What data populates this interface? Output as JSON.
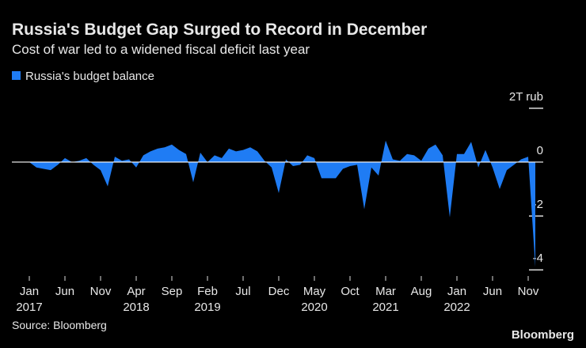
{
  "chart_data": {
    "type": "area",
    "title": "Russia's Budget Gap Surged to Record in December",
    "subtitle": "Cost of war led to a widened fiscal deficit last year",
    "source": "Source: Bloomberg",
    "logo": "Bloomberg",
    "categories": [
      "Jan",
      null,
      null,
      null,
      null,
      "Jun",
      null,
      null,
      null,
      null,
      "Nov",
      null,
      null,
      null,
      null,
      "Apr",
      null,
      null,
      null,
      null,
      "Sep",
      null,
      null,
      null,
      null,
      "Feb",
      null,
      null,
      null,
      null,
      "Jul",
      null,
      null,
      null,
      null,
      "Dec",
      null,
      null,
      null,
      null,
      "May",
      null,
      null,
      null,
      null,
      "Oct",
      null,
      null,
      null,
      null,
      "Mar",
      null,
      null,
      null,
      null,
      "Aug",
      null,
      null,
      null,
      null,
      "Jan",
      null,
      null,
      null,
      null,
      "Jun",
      null,
      null,
      null,
      null,
      "Nov",
      null
    ],
    "category_years": [
      "2017",
      null,
      null,
      null,
      null,
      null,
      null,
      null,
      null,
      null,
      null,
      null,
      null,
      null,
      null,
      "2018",
      null,
      null,
      null,
      null,
      null,
      null,
      null,
      null,
      null,
      "2019",
      null,
      null,
      null,
      null,
      null,
      null,
      null,
      null,
      null,
      null,
      null,
      null,
      null,
      null,
      "2020",
      null,
      null,
      null,
      null,
      null,
      null,
      null,
      null,
      null,
      "2021",
      null,
      null,
      null,
      null,
      null,
      null,
      null,
      null,
      null,
      "2022",
      null,
      null,
      null,
      null,
      null,
      null,
      null,
      null,
      null,
      null,
      null
    ],
    "series": [
      {
        "name": "Russia's budget balance",
        "color": "#1f7cf4",
        "values": [
          0,
          -0.2,
          -0.25,
          -0.3,
          -0.1,
          0.15,
          0,
          0.05,
          0.15,
          -0.1,
          -0.3,
          -0.9,
          0.2,
          0.05,
          0.1,
          -0.2,
          0.25,
          0.4,
          0.5,
          0.55,
          0.65,
          0.45,
          0.3,
          -0.75,
          0.35,
          0,
          0.25,
          0.15,
          0.5,
          0.4,
          0.45,
          0.55,
          0.4,
          0.05,
          -0.2,
          -1.15,
          0.1,
          -0.15,
          -0.1,
          0.25,
          0.15,
          -0.6,
          -0.6,
          -0.6,
          -0.25,
          -0.15,
          -0.1,
          -1.75,
          -0.2,
          -0.5,
          0.8,
          0.1,
          0.05,
          0.3,
          0.25,
          0.05,
          0.5,
          0.65,
          0.25,
          -2.05,
          0.3,
          0.3,
          0.75,
          -0.2,
          0.45,
          -0.2,
          -1.0,
          -0.3,
          -0.1,
          0.1,
          0.2,
          -3.9
        ]
      }
    ],
    "ylim": [
      -4.2,
      2.2
    ],
    "yticks": [
      {
        "value": 2,
        "label": "2T rub"
      },
      0,
      -2,
      -4
    ]
  }
}
